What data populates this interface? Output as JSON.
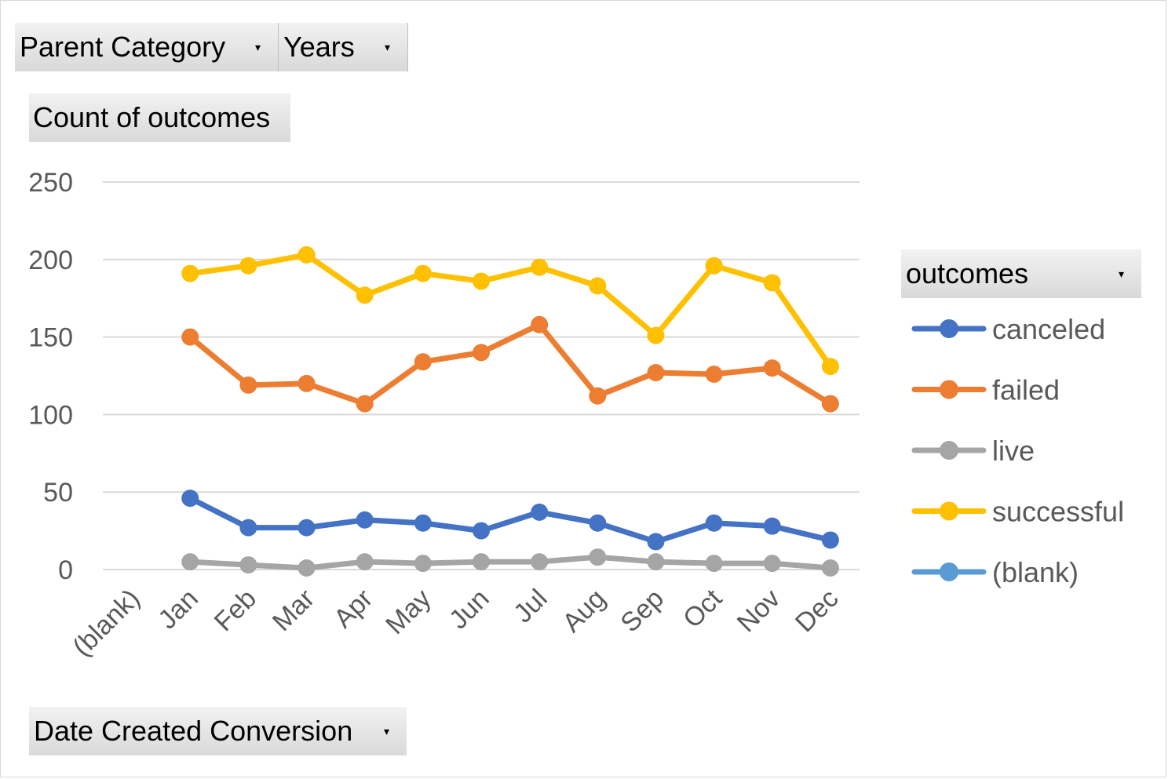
{
  "filters": {
    "parent_category": "Parent Category",
    "years": "Years",
    "dropdown_glyph": "▾"
  },
  "value_field": "Count of outcomes",
  "axis_field": "Date Created Conversion",
  "legend_field": "outcomes",
  "chart_data": {
    "type": "line",
    "categories": [
      "(blank)",
      "Jan",
      "Feb",
      "Mar",
      "Apr",
      "May",
      "Jun",
      "Jul",
      "Aug",
      "Sep",
      "Oct",
      "Nov",
      "Dec"
    ],
    "ylim": [
      0,
      250
    ],
    "yticks": [
      0,
      50,
      100,
      150,
      200,
      250
    ],
    "grid": true,
    "legend_position": "right",
    "series": [
      {
        "name": "canceled",
        "color": "#4472c4",
        "values": [
          null,
          46,
          27,
          27,
          32,
          30,
          25,
          37,
          30,
          18,
          30,
          28,
          19
        ]
      },
      {
        "name": "failed",
        "color": "#ed7d31",
        "values": [
          null,
          150,
          119,
          120,
          107,
          134,
          140,
          158,
          112,
          127,
          126,
          130,
          107
        ]
      },
      {
        "name": "live",
        "color": "#a5a5a5",
        "values": [
          null,
          5,
          3,
          1,
          5,
          4,
          5,
          5,
          8,
          5,
          4,
          4,
          1
        ]
      },
      {
        "name": "successful",
        "color": "#ffc000",
        "values": [
          null,
          191,
          196,
          203,
          177,
          191,
          186,
          195,
          183,
          151,
          196,
          185,
          131
        ]
      },
      {
        "name": "(blank)",
        "color": "#5b9bd5",
        "values": [
          null,
          null,
          null,
          null,
          null,
          null,
          null,
          null,
          null,
          null,
          null,
          null,
          null
        ]
      }
    ]
  }
}
